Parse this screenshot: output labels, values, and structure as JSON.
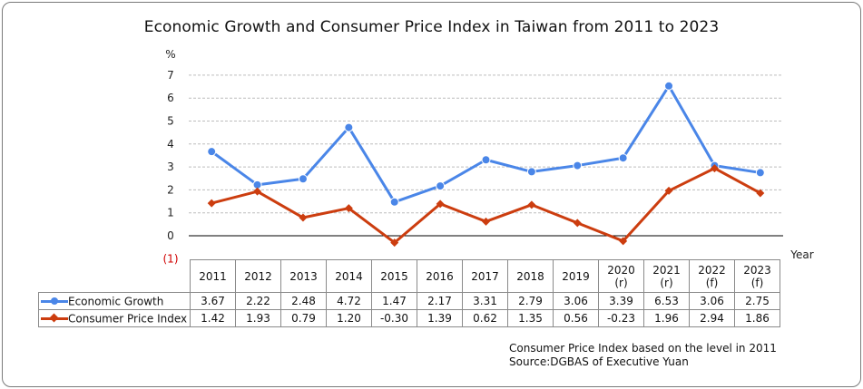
{
  "chart_data": {
    "type": "line",
    "title": "Economic Growth and Consumer Price Index in Taiwan from 2011 to 2023",
    "ylabel": "%",
    "xlabel": "Year",
    "ylim": [
      -1,
      7
    ],
    "yticks": [
      7,
      6,
      5,
      4,
      3,
      2,
      1,
      0
    ],
    "neg_tick_label": "(1)",
    "grid": true,
    "categories": [
      [
        "2011"
      ],
      [
        "2012"
      ],
      [
        "2013"
      ],
      [
        "2014"
      ],
      [
        "2015"
      ],
      [
        "2016"
      ],
      [
        "2017"
      ],
      [
        "2018"
      ],
      [
        "2019"
      ],
      [
        "2020",
        "(r)"
      ],
      [
        "2021",
        "(r)"
      ],
      [
        "2022",
        "(f)"
      ],
      [
        "2023",
        "(f)"
      ]
    ],
    "series": [
      {
        "name": "Economic Growth",
        "color": "#4a86e8",
        "marker": "circle",
        "values": [
          3.67,
          2.22,
          2.48,
          4.72,
          1.47,
          2.17,
          3.31,
          2.79,
          3.06,
          3.39,
          6.53,
          3.06,
          2.75
        ],
        "labels": [
          "3.67",
          "2.22",
          "2.48",
          "4.72",
          "1.47",
          "2.17",
          "3.31",
          "2.79",
          "3.06",
          "3.39",
          "6.53",
          "3.06",
          "2.75"
        ]
      },
      {
        "name": "Consumer Price Index",
        "color": "#cc3d0f",
        "marker": "diamond",
        "values": [
          1.42,
          1.93,
          0.79,
          1.2,
          -0.3,
          1.39,
          0.62,
          1.35,
          0.56,
          -0.23,
          1.96,
          2.94,
          1.86
        ],
        "labels": [
          "1.42",
          "1.93",
          "0.79",
          "1.20",
          "-0.30",
          "1.39",
          "0.62",
          "1.35",
          "0.56",
          "-0.23",
          "1.96",
          "2.94",
          "1.86"
        ]
      }
    ],
    "notes": [
      "Consumer Price Index based on the level in 2011",
      "Source:DGBAS of Executive Yuan"
    ]
  }
}
